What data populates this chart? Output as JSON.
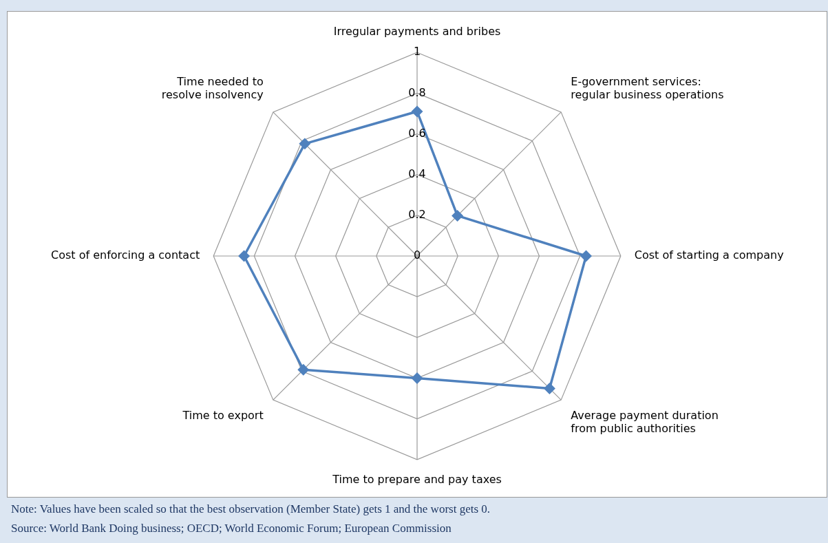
{
  "chart_data": {
    "type": "radar",
    "categories": [
      "Irregular payments and bribes",
      "E-government services: regular business operations",
      "Cost of starting a company",
      "Average payment duration from public authorities",
      "Time to prepare and pay taxes",
      "Time to export",
      "Cost of enforcing a contact",
      "Time needed to resolve insolvency"
    ],
    "series": [
      {
        "color": "#4f81bd",
        "values": [
          0.71,
          0.28,
          0.83,
          0.92,
          0.6,
          0.79,
          0.85,
          0.78
        ]
      }
    ],
    "ylim": [
      0,
      1
    ],
    "yticks": [
      0,
      0.2,
      0.4,
      0.6,
      0.8,
      1
    ],
    "grid": true,
    "legend": false,
    "marker": "diamond",
    "line_style": "solid",
    "annotations": [
      "Note: Values have been scaled so that the best observation (Member State) gets 1 and the worst gets 0.",
      "Source: World Bank Doing business; OECD; World Economic Forum; European Commission"
    ]
  }
}
